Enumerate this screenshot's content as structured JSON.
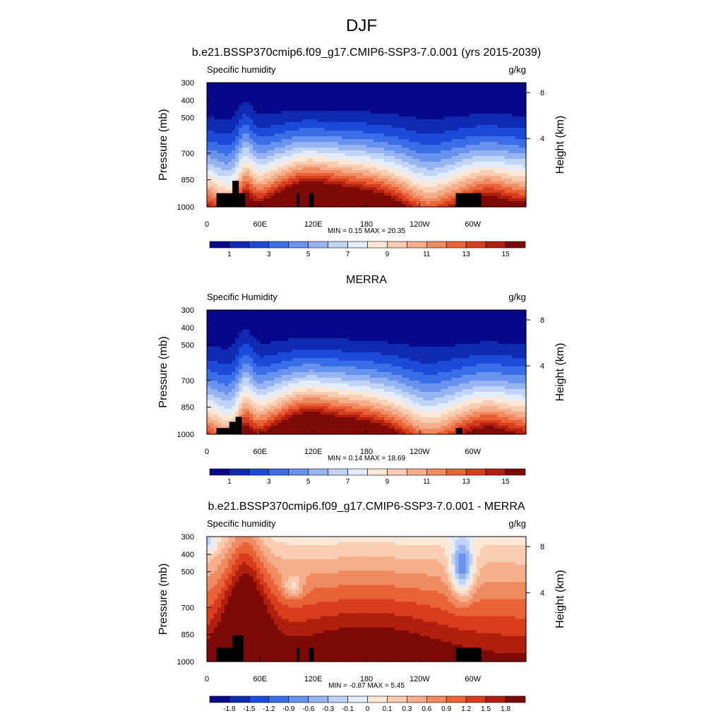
{
  "page": {
    "title": "DJF"
  },
  "chart_data": [
    {
      "type": "heatmap",
      "title": "b.e21.BSSP370cmip6.f09_g17.CMIP6-SSP3-7.0.001 (yrs 2015-2039)",
      "left_label": "Specific humidity",
      "right_label": "g/kg",
      "xlabel": "",
      "ylabel": "Pressure (mb)",
      "y2label": "Height (km)",
      "xlim": [
        0,
        360
      ],
      "ylim": [
        1000,
        300
      ],
      "yscale": "log",
      "x_ticks": [
        "0",
        "60E",
        "120E",
        "180",
        "120W",
        "60W"
      ],
      "y_ticks": [
        "300",
        "400",
        "500",
        "700",
        "850",
        "1000"
      ],
      "y2_ticks": [
        "8",
        "4"
      ],
      "stats": "MIN =   0.15  MAX =  20.35",
      "colorbar_labels": [
        "1",
        "3",
        "5",
        "7",
        "9",
        "11",
        "13",
        "15"
      ],
      "min": 0.15,
      "max": 20.35
    },
    {
      "type": "heatmap",
      "title": "MERRA",
      "left_label": "Specific Humidity",
      "right_label": "g/kg",
      "xlabel": "",
      "ylabel": "Pressure (mb)",
      "y2label": "Height (km)",
      "xlim": [
        0,
        360
      ],
      "ylim": [
        1000,
        300
      ],
      "yscale": "log",
      "x_ticks": [
        "0",
        "60E",
        "120E",
        "180",
        "120W",
        "60W"
      ],
      "y_ticks": [
        "300",
        "400",
        "500",
        "700",
        "850",
        "1000"
      ],
      "y2_ticks": [
        "8",
        "4"
      ],
      "stats": "MIN =   0.14  MAX =  18.69",
      "colorbar_labels": [
        "1",
        "3",
        "5",
        "7",
        "9",
        "11",
        "13",
        "15"
      ],
      "min": 0.14,
      "max": 18.69
    },
    {
      "type": "heatmap",
      "title": "b.e21.BSSP370cmip6.f09_g17.CMIP6-SSP3-7.0.001 - MERRA",
      "left_label": "Specific humidity",
      "right_label": "g/kg",
      "xlabel": "",
      "ylabel": "Pressure (mb)",
      "y2label": "Height (km)",
      "xlim": [
        0,
        360
      ],
      "ylim": [
        1000,
        300
      ],
      "yscale": "log",
      "x_ticks": [
        "0",
        "60E",
        "120E",
        "180",
        "120W",
        "60W"
      ],
      "y_ticks": [
        "300",
        "400",
        "500",
        "700",
        "850",
        "1000"
      ],
      "y2_ticks": [
        "8",
        "4"
      ],
      "stats": "MIN =  -0.87  MAX =   5.45",
      "colorbar_labels": [
        "-1.8",
        "-1.5",
        "-1.2",
        "-0.9",
        "-0.6",
        "-0.3",
        "-0.1",
        "0",
        "0.1",
        "0.3",
        "0.6",
        "0.9",
        "1.2",
        "1.5",
        "1.8"
      ],
      "min": -0.87,
      "max": 5.45
    }
  ],
  "colors": {
    "palette": [
      "#08088a",
      "#0f2bb4",
      "#1b4bd8",
      "#3a6ee8",
      "#6892ee",
      "#97b4f2",
      "#c1d4f7",
      "#e3ecfb",
      "#fde8d8",
      "#f9cdb1",
      "#f5ad8a",
      "#f08a60",
      "#ea6338",
      "#d83e1d",
      "#b11f0f",
      "#7d0a06"
    ],
    "topography": "#000000"
  }
}
